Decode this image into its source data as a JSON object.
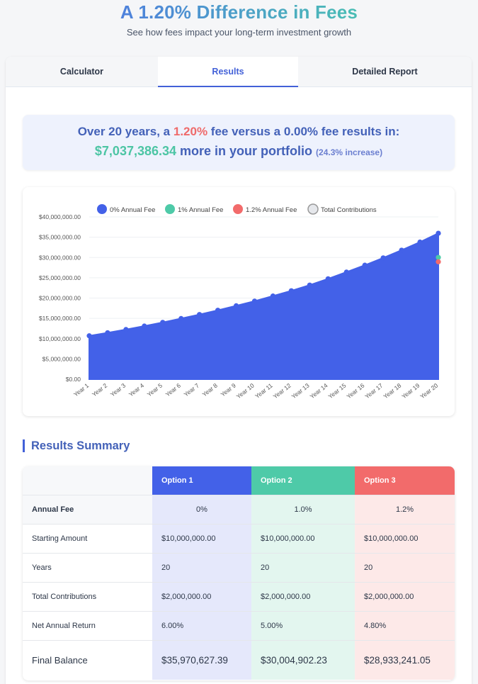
{
  "header": {
    "title": "A 1.20% Difference in Fees",
    "subtitle": "See how fees impact your long-term investment growth"
  },
  "tabs": [
    {
      "label": "Calculator",
      "active": false
    },
    {
      "label": "Results",
      "active": true
    },
    {
      "label": "Detailed Report",
      "active": false
    }
  ],
  "banner": {
    "line1_prefix": "Over 20 years, a ",
    "line1_fee_high": "1.20%",
    "line1_mid": " fee versus a ",
    "line1_fee_low": "0.00%",
    "line1_suffix": " fee results in:",
    "difference": "$7,037,386.34",
    "difference_suffix": " more in your portfolio ",
    "increase": "(24.3% increase)"
  },
  "chart_data": {
    "type": "area",
    "legend_position": "top",
    "legend": [
      {
        "label": "0% Annual Fee",
        "color": "#4361e8"
      },
      {
        "label": "1% Annual Fee",
        "color": "#4ecaa8"
      },
      {
        "label": "1.2% Annual Fee",
        "color": "#f26b6b"
      },
      {
        "label": "Total Contributions",
        "color": "#e5e7eb"
      }
    ],
    "categories": [
      "Year 1",
      "Year 2",
      "Year 3",
      "Year 4",
      "Year 5",
      "Year 6",
      "Year 7",
      "Year 8",
      "Year 9",
      "Year 10",
      "Year 11",
      "Year 12",
      "Year 13",
      "Year 14",
      "Year 15",
      "Year 16",
      "Year 17",
      "Year 18",
      "Year 19",
      "Year 20"
    ],
    "ylim": [
      0,
      40000000
    ],
    "yticks": [
      0,
      5000000,
      10000000,
      15000000,
      20000000,
      25000000,
      30000000,
      35000000,
      40000000
    ],
    "ytick_labels": [
      "$0.00",
      "$5,000,000.00",
      "$10,000,000.00",
      "$15,000,000.00",
      "$20,000,000.00",
      "$25,000,000.00",
      "$30,000,000.00",
      "$35,000,000.00",
      "$40,000,000.00"
    ],
    "series": [
      {
        "name": "0% Annual Fee",
        "color": "#4361e8",
        "values": [
          10700000,
          11450000,
          12250000,
          13100000,
          14000000,
          14950000,
          15950000,
          17000000,
          18100000,
          19250000,
          20500000,
          21800000,
          23200000,
          24750000,
          26400000,
          28100000,
          29900000,
          31800000,
          33800000,
          35970627.39
        ]
      },
      {
        "name": "1% Annual Fee",
        "color": "#4ecaa8",
        "final_value": 30004902.23
      },
      {
        "name": "1.2% Annual Fee",
        "color": "#f26b6b",
        "final_value": 28933241.05
      }
    ]
  },
  "summary": {
    "title": "Results Summary",
    "headers": [
      "",
      "Option 1",
      "Option 2",
      "Option 3"
    ],
    "rows": [
      {
        "label": "Annual Fee",
        "values": [
          "0%",
          "1.0%",
          "1.2%"
        ]
      },
      {
        "label": "Starting Amount",
        "values": [
          "$10,000,000.00",
          "$10,000,000.00",
          "$10,000,000.00"
        ]
      },
      {
        "label": "Years",
        "values": [
          "20",
          "20",
          "20"
        ]
      },
      {
        "label": "Total Contributions",
        "values": [
          "$2,000,000.00",
          "$2,000,000.00",
          "$2,000,000.00"
        ]
      },
      {
        "label": "Net Annual Return",
        "values": [
          "6.00%",
          "5.00%",
          "4.80%"
        ]
      },
      {
        "label": "Final Balance",
        "values": [
          "$35,970,627.39",
          "$30,004,902.23",
          "$28,933,241.05"
        ]
      }
    ]
  }
}
